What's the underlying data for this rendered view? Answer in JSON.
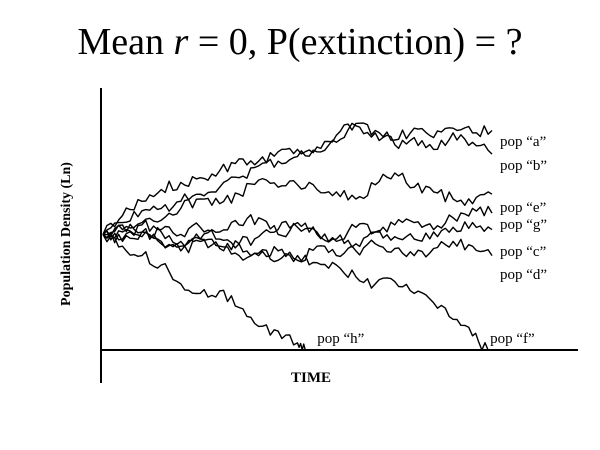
{
  "title": {
    "prefix": "Mean ",
    "variable": "r",
    "suffix": " = 0, P(extinction) = ?"
  },
  "chart_data": {
    "type": "line",
    "title": "Mean r = 0, P(extinction) = ?",
    "xlabel": "TIME",
    "ylabel": "Population Density (Ln)",
    "xlim": [
      0,
      100
    ],
    "ylim": [
      0,
      100
    ],
    "grid": false,
    "legend": "labels at line ends",
    "series": [
      {
        "name": "pop “a”",
        "x": [
          0,
          5,
          10,
          15,
          20,
          25,
          30,
          35,
          40,
          45,
          50,
          55,
          60,
          65,
          70,
          75,
          80,
          85,
          90,
          95,
          100
        ],
        "values": [
          49,
          57,
          63,
          68,
          71,
          73,
          76,
          81,
          80,
          84,
          85,
          86,
          91,
          96,
          93,
          89,
          94,
          90,
          94,
          92,
          93
        ]
      },
      {
        "name": "pop “b”",
        "x": [
          0,
          5,
          10,
          15,
          20,
          25,
          30,
          35,
          40,
          45,
          50,
          55,
          60,
          65,
          70,
          75,
          80,
          85,
          90,
          95,
          100
        ],
        "values": [
          49,
          54,
          59,
          60,
          63,
          66,
          69,
          73,
          78,
          80,
          82,
          84,
          88,
          95,
          92,
          87,
          90,
          85,
          92,
          88,
          83
        ]
      },
      {
        "name": "pop “e”",
        "x": [
          0,
          5,
          10,
          15,
          20,
          25,
          30,
          35,
          40,
          45,
          50,
          55,
          60,
          65,
          70,
          75,
          80,
          85,
          90,
          95,
          100
        ],
        "values": [
          49,
          51,
          54,
          55,
          60,
          64,
          62,
          66,
          72,
          69,
          70,
          68,
          67,
          64,
          70,
          75,
          69,
          67,
          64,
          62,
          66
        ]
      },
      {
        "name": "pop “g”",
        "x": [
          0,
          5,
          10,
          15,
          20,
          25,
          30,
          35,
          40,
          45,
          50,
          55,
          60,
          65,
          70,
          75,
          80,
          85,
          90,
          95,
          100
        ],
        "values": [
          49,
          50,
          48,
          50,
          46,
          47,
          50,
          53,
          56,
          49,
          52,
          50,
          47,
          45,
          50,
          53,
          54,
          51,
          56,
          60,
          58
        ]
      },
      {
        "name": "pop “c”",
        "x": [
          0,
          5,
          10,
          15,
          20,
          25,
          30,
          35,
          40,
          45,
          50,
          55,
          60,
          65,
          70,
          75,
          80,
          85,
          90,
          95,
          100
        ],
        "values": [
          49,
          47,
          53,
          51,
          49,
          52,
          47,
          45,
          48,
          51,
          54,
          49,
          46,
          52,
          50,
          48,
          47,
          50,
          52,
          54,
          51
        ]
      },
      {
        "name": "pop “d”",
        "x": [
          0,
          5,
          10,
          15,
          20,
          25,
          30,
          35,
          40,
          45,
          50,
          55,
          60,
          65,
          70,
          75,
          80,
          85,
          90,
          95,
          100
        ],
        "values": [
          49,
          53,
          50,
          46,
          44,
          47,
          43,
          45,
          40,
          42,
          38,
          44,
          40,
          42,
          45,
          43,
          40,
          43,
          46,
          44,
          40
        ]
      },
      {
        "name": "pop “f”",
        "x": [
          0,
          5,
          10,
          15,
          20,
          25,
          30,
          35,
          40,
          45,
          50,
          55,
          60,
          65,
          70,
          75,
          80,
          85,
          90,
          95,
          99
        ],
        "values": [
          49,
          46,
          50,
          45,
          42,
          46,
          44,
          40,
          41,
          38,
          40,
          37,
          36,
          31,
          28,
          29,
          24,
          20,
          13,
          6,
          0
        ]
      },
      {
        "name": "pop “h”",
        "x": [
          0,
          5,
          10,
          15,
          20,
          25,
          30,
          35,
          40,
          45,
          50,
          52
        ],
        "values": [
          49,
          44,
          40,
          36,
          28,
          24,
          25,
          18,
          10,
          8,
          3,
          0
        ]
      }
    ]
  }
}
